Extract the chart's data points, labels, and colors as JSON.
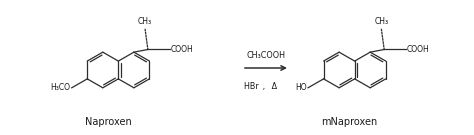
{
  "bg_color": "#ffffff",
  "line_color": "#2d2d2d",
  "text_color": "#1a1a1a",
  "fig_width": 4.74,
  "fig_height": 1.35,
  "dpi": 100,
  "naproxen_label": "Naproxen",
  "mnaproxen_label": "mNaproxen",
  "reagent_top": "CH₃COOH",
  "reagent_bottom": "HBr ,  Δ",
  "ho_label": "HO",
  "h3co_label": "H₃CO",
  "cooh_label": "COOH",
  "ch3_label": "CH₃",
  "font_size_label": 7.0,
  "font_size_reagent": 5.8,
  "font_size_struct": 5.5,
  "lw": 0.9
}
